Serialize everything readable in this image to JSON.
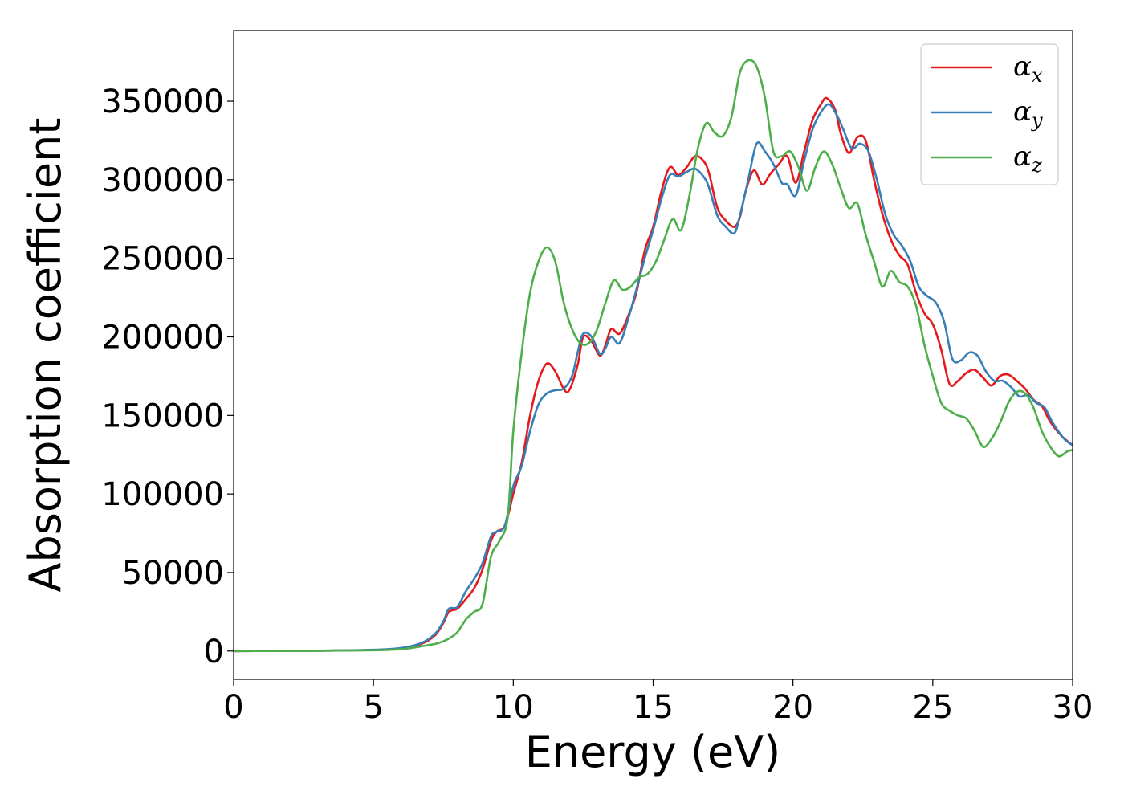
{
  "chart_data": {
    "type": "line",
    "title": "",
    "xlabel": "Energy (eV)",
    "ylabel": "Absorption coefficient",
    "xlim": [
      0,
      30
    ],
    "ylim": [
      -18000,
      395000
    ],
    "xticks": [
      0,
      5,
      10,
      15,
      20,
      25,
      30
    ],
    "yticks": [
      0,
      50000,
      100000,
      150000,
      200000,
      250000,
      300000,
      350000
    ],
    "grid": false,
    "legend_position": "top-right",
    "series": [
      {
        "name": "α_x",
        "legend_base": "α",
        "legend_sub": "x",
        "color": "#e41a1c",
        "points": [
          [
            0,
            0
          ],
          [
            3,
            200
          ],
          [
            5,
            700
          ],
          [
            6,
            1800
          ],
          [
            6.7,
            4500
          ],
          [
            7.2,
            10000
          ],
          [
            7.5,
            18000
          ],
          [
            7.7,
            25000
          ],
          [
            8.0,
            27000
          ],
          [
            8.3,
            33000
          ],
          [
            8.6,
            40000
          ],
          [
            8.9,
            52000
          ],
          [
            9.2,
            70000
          ],
          [
            9.4,
            76000
          ],
          [
            9.7,
            80000
          ],
          [
            10.0,
            100000
          ],
          [
            10.3,
            120000
          ],
          [
            10.6,
            150000
          ],
          [
            10.9,
            172000
          ],
          [
            11.2,
            183000
          ],
          [
            11.5,
            178000
          ],
          [
            11.8,
            167000
          ],
          [
            12.0,
            166000
          ],
          [
            12.3,
            182000
          ],
          [
            12.5,
            200000
          ],
          [
            12.8,
            197000
          ],
          [
            13.1,
            188000
          ],
          [
            13.3,
            195000
          ],
          [
            13.5,
            205000
          ],
          [
            13.8,
            202000
          ],
          [
            14.1,
            213000
          ],
          [
            14.4,
            228000
          ],
          [
            14.7,
            255000
          ],
          [
            15.0,
            270000
          ],
          [
            15.3,
            293000
          ],
          [
            15.6,
            308000
          ],
          [
            15.9,
            303000
          ],
          [
            16.2,
            308000
          ],
          [
            16.5,
            315000
          ],
          [
            16.8,
            312000
          ],
          [
            17.0,
            304000
          ],
          [
            17.3,
            282000
          ],
          [
            17.6,
            274000
          ],
          [
            17.9,
            270000
          ],
          [
            18.1,
            276000
          ],
          [
            18.3,
            292000
          ],
          [
            18.6,
            306000
          ],
          [
            18.9,
            297000
          ],
          [
            19.2,
            304000
          ],
          [
            19.5,
            310000
          ],
          [
            19.8,
            315000
          ],
          [
            20.1,
            298000
          ],
          [
            20.4,
            318000
          ],
          [
            20.7,
            338000
          ],
          [
            21.0,
            348000
          ],
          [
            21.2,
            352000
          ],
          [
            21.5,
            345000
          ],
          [
            21.7,
            330000
          ],
          [
            22.0,
            317000
          ],
          [
            22.3,
            327000
          ],
          [
            22.6,
            325000
          ],
          [
            22.9,
            300000
          ],
          [
            23.2,
            278000
          ],
          [
            23.5,
            262000
          ],
          [
            23.8,
            252000
          ],
          [
            24.1,
            246000
          ],
          [
            24.4,
            228000
          ],
          [
            24.7,
            215000
          ],
          [
            25.0,
            208000
          ],
          [
            25.3,
            192000
          ],
          [
            25.6,
            170000
          ],
          [
            25.9,
            172000
          ],
          [
            26.2,
            177000
          ],
          [
            26.5,
            179000
          ],
          [
            26.8,
            174000
          ],
          [
            27.1,
            169000
          ],
          [
            27.4,
            175000
          ],
          [
            27.7,
            176000
          ],
          [
            28.0,
            172000
          ],
          [
            28.3,
            167000
          ],
          [
            28.6,
            160000
          ],
          [
            28.9,
            156000
          ],
          [
            29.2,
            146000
          ],
          [
            29.6,
            137000
          ],
          [
            30.0,
            131000
          ]
        ]
      },
      {
        "name": "α_y",
        "legend_base": "α",
        "legend_sub": "y",
        "color": "#377eb8",
        "points": [
          [
            0,
            0
          ],
          [
            3,
            200
          ],
          [
            5,
            800
          ],
          [
            6,
            2000
          ],
          [
            6.7,
            5000
          ],
          [
            7.2,
            11000
          ],
          [
            7.5,
            19000
          ],
          [
            7.7,
            27000
          ],
          [
            8.0,
            28000
          ],
          [
            8.3,
            38000
          ],
          [
            8.6,
            46000
          ],
          [
            8.9,
            56000
          ],
          [
            9.2,
            73000
          ],
          [
            9.4,
            76000
          ],
          [
            9.7,
            80000
          ],
          [
            10.0,
            105000
          ],
          [
            10.3,
            118000
          ],
          [
            10.6,
            140000
          ],
          [
            10.9,
            157000
          ],
          [
            11.2,
            164000
          ],
          [
            11.5,
            166000
          ],
          [
            11.8,
            167000
          ],
          [
            12.1,
            175000
          ],
          [
            12.3,
            190000
          ],
          [
            12.5,
            202000
          ],
          [
            12.8,
            200000
          ],
          [
            13.1,
            189000
          ],
          [
            13.3,
            193000
          ],
          [
            13.5,
            200000
          ],
          [
            13.8,
            196000
          ],
          [
            14.1,
            211000
          ],
          [
            14.4,
            230000
          ],
          [
            14.7,
            250000
          ],
          [
            15.0,
            268000
          ],
          [
            15.3,
            288000
          ],
          [
            15.6,
            303000
          ],
          [
            15.9,
            302000
          ],
          [
            16.2,
            305000
          ],
          [
            16.5,
            307000
          ],
          [
            16.8,
            302000
          ],
          [
            17.0,
            295000
          ],
          [
            17.3,
            277000
          ],
          [
            17.6,
            270000
          ],
          [
            17.9,
            266000
          ],
          [
            18.1,
            277000
          ],
          [
            18.4,
            300000
          ],
          [
            18.7,
            323000
          ],
          [
            19.0,
            318000
          ],
          [
            19.3,
            310000
          ],
          [
            19.6,
            298000
          ],
          [
            19.8,
            297000
          ],
          [
            20.1,
            290000
          ],
          [
            20.4,
            312000
          ],
          [
            20.7,
            332000
          ],
          [
            21.0,
            343000
          ],
          [
            21.3,
            348000
          ],
          [
            21.6,
            340000
          ],
          [
            21.8,
            332000
          ],
          [
            22.1,
            320000
          ],
          [
            22.4,
            323000
          ],
          [
            22.7,
            318000
          ],
          [
            23.0,
            300000
          ],
          [
            23.3,
            278000
          ],
          [
            23.6,
            265000
          ],
          [
            23.9,
            258000
          ],
          [
            24.2,
            248000
          ],
          [
            24.5,
            232000
          ],
          [
            24.8,
            226000
          ],
          [
            25.1,
            222000
          ],
          [
            25.4,
            210000
          ],
          [
            25.7,
            186000
          ],
          [
            26.0,
            185000
          ],
          [
            26.3,
            190000
          ],
          [
            26.6,
            188000
          ],
          [
            26.9,
            178000
          ],
          [
            27.2,
            172000
          ],
          [
            27.5,
            172000
          ],
          [
            27.8,
            168000
          ],
          [
            28.1,
            162000
          ],
          [
            28.4,
            163000
          ],
          [
            28.7,
            158000
          ],
          [
            29.0,
            155000
          ],
          [
            29.3,
            145000
          ],
          [
            29.7,
            135000
          ],
          [
            30.0,
            131000
          ]
        ]
      },
      {
        "name": "α_z",
        "legend_base": "α",
        "legend_sub": "z",
        "color": "#4daf4a",
        "points": [
          [
            0,
            0
          ],
          [
            3,
            200
          ],
          [
            5,
            500
          ],
          [
            6,
            1200
          ],
          [
            6.7,
            3000
          ],
          [
            7.3,
            5000
          ],
          [
            7.7,
            8000
          ],
          [
            8.0,
            12000
          ],
          [
            8.3,
            20000
          ],
          [
            8.6,
            25000
          ],
          [
            8.9,
            30000
          ],
          [
            9.2,
            60000
          ],
          [
            9.5,
            70000
          ],
          [
            9.8,
            85000
          ],
          [
            10.0,
            140000
          ],
          [
            10.3,
            190000
          ],
          [
            10.6,
            228000
          ],
          [
            10.9,
            248000
          ],
          [
            11.2,
            257000
          ],
          [
            11.5,
            248000
          ],
          [
            11.8,
            222000
          ],
          [
            12.1,
            205000
          ],
          [
            12.4,
            196000
          ],
          [
            12.7,
            196000
          ],
          [
            13.0,
            205000
          ],
          [
            13.3,
            222000
          ],
          [
            13.6,
            236000
          ],
          [
            13.9,
            230000
          ],
          [
            14.2,
            232000
          ],
          [
            14.5,
            238000
          ],
          [
            14.8,
            240000
          ],
          [
            15.1,
            248000
          ],
          [
            15.4,
            262000
          ],
          [
            15.7,
            275000
          ],
          [
            16.0,
            268000
          ],
          [
            16.3,
            290000
          ],
          [
            16.6,
            320000
          ],
          [
            16.9,
            336000
          ],
          [
            17.2,
            330000
          ],
          [
            17.5,
            328000
          ],
          [
            17.8,
            340000
          ],
          [
            18.1,
            368000
          ],
          [
            18.4,
            376000
          ],
          [
            18.7,
            372000
          ],
          [
            19.0,
            352000
          ],
          [
            19.3,
            318000
          ],
          [
            19.6,
            315000
          ],
          [
            19.9,
            318000
          ],
          [
            20.2,
            308000
          ],
          [
            20.5,
            293000
          ],
          [
            20.8,
            308000
          ],
          [
            21.1,
            318000
          ],
          [
            21.4,
            310000
          ],
          [
            21.7,
            295000
          ],
          [
            22.0,
            282000
          ],
          [
            22.3,
            285000
          ],
          [
            22.6,
            265000
          ],
          [
            22.9,
            248000
          ],
          [
            23.2,
            232000
          ],
          [
            23.5,
            242000
          ],
          [
            23.8,
            235000
          ],
          [
            24.1,
            232000
          ],
          [
            24.4,
            220000
          ],
          [
            24.7,
            195000
          ],
          [
            25.0,
            175000
          ],
          [
            25.3,
            158000
          ],
          [
            25.6,
            153000
          ],
          [
            25.9,
            150000
          ],
          [
            26.2,
            148000
          ],
          [
            26.5,
            140000
          ],
          [
            26.8,
            130000
          ],
          [
            27.1,
            135000
          ],
          [
            27.4,
            145000
          ],
          [
            27.7,
            158000
          ],
          [
            28.0,
            165000
          ],
          [
            28.3,
            164000
          ],
          [
            28.6,
            155000
          ],
          [
            28.9,
            140000
          ],
          [
            29.2,
            130000
          ],
          [
            29.5,
            124000
          ],
          [
            29.8,
            127000
          ],
          [
            30.0,
            128000
          ]
        ]
      }
    ]
  }
}
